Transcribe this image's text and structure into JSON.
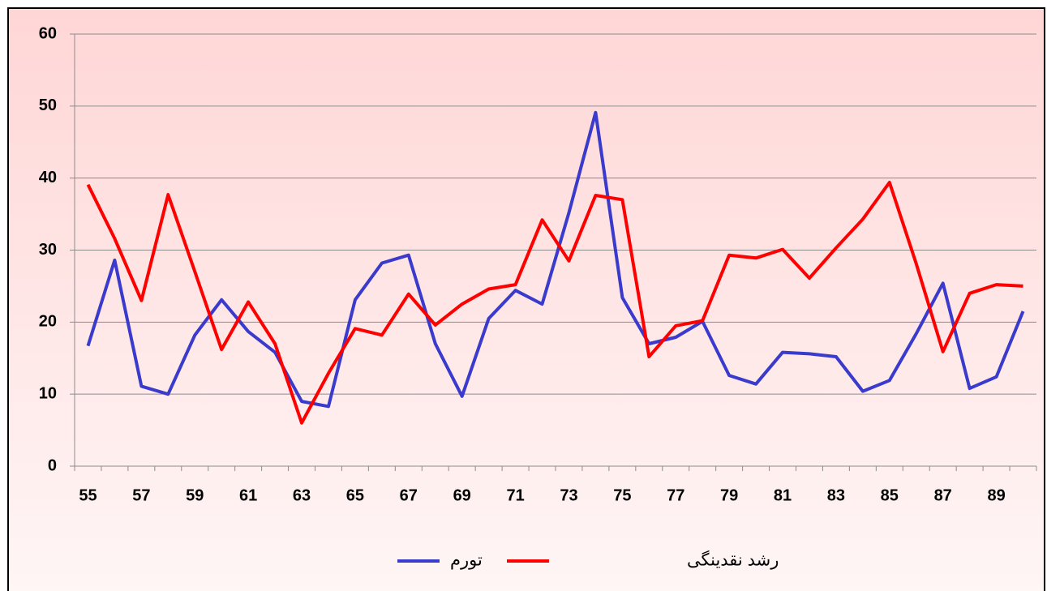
{
  "chart_data": {
    "type": "line",
    "categories": [
      "55",
      null,
      "57",
      null,
      "59",
      null,
      "61",
      null,
      "63",
      null,
      "65",
      null,
      "67",
      null,
      "69",
      null,
      "71",
      null,
      "73",
      null,
      "75",
      null,
      "77",
      null,
      "79",
      null,
      "81",
      null,
      "83",
      null,
      "85",
      null,
      "87",
      null,
      "89",
      null
    ],
    "series": [
      {
        "name": "تورم",
        "color": "#3a3acc",
        "values": [
          16.7,
          28.6,
          11.1,
          10.0,
          18.2,
          23.1,
          18.7,
          15.8,
          9.0,
          8.3,
          23.1,
          28.2,
          29.3,
          17.0,
          9.7,
          20.5,
          24.4,
          22.5,
          35.2,
          49.1,
          23.4,
          17.0,
          17.9,
          20.1,
          12.6,
          11.4,
          15.8,
          15.6,
          15.2,
          10.4,
          11.9,
          18.4,
          25.4,
          10.8,
          12.4,
          21.5
        ]
      },
      {
        "name": "رشد نقدینگی",
        "color": "#ff0000",
        "values": [
          39.1,
          31.6,
          23.0,
          37.7,
          27.0,
          16.2,
          22.8,
          17.0,
          6.0,
          12.9,
          19.1,
          18.2,
          23.9,
          19.6,
          22.5,
          24.6,
          25.2,
          34.2,
          28.5,
          37.6,
          37.0,
          15.2,
          19.5,
          20.2,
          29.3,
          28.9,
          30.1,
          26.1,
          30.3,
          34.3,
          39.4,
          28.1,
          15.9,
          24.0,
          25.2,
          25.0
        ]
      }
    ],
    "ylim": [
      0,
      60
    ],
    "yticks": [
      0,
      10,
      20,
      30,
      40,
      50,
      60
    ],
    "grid": true,
    "legend": "bottom"
  }
}
